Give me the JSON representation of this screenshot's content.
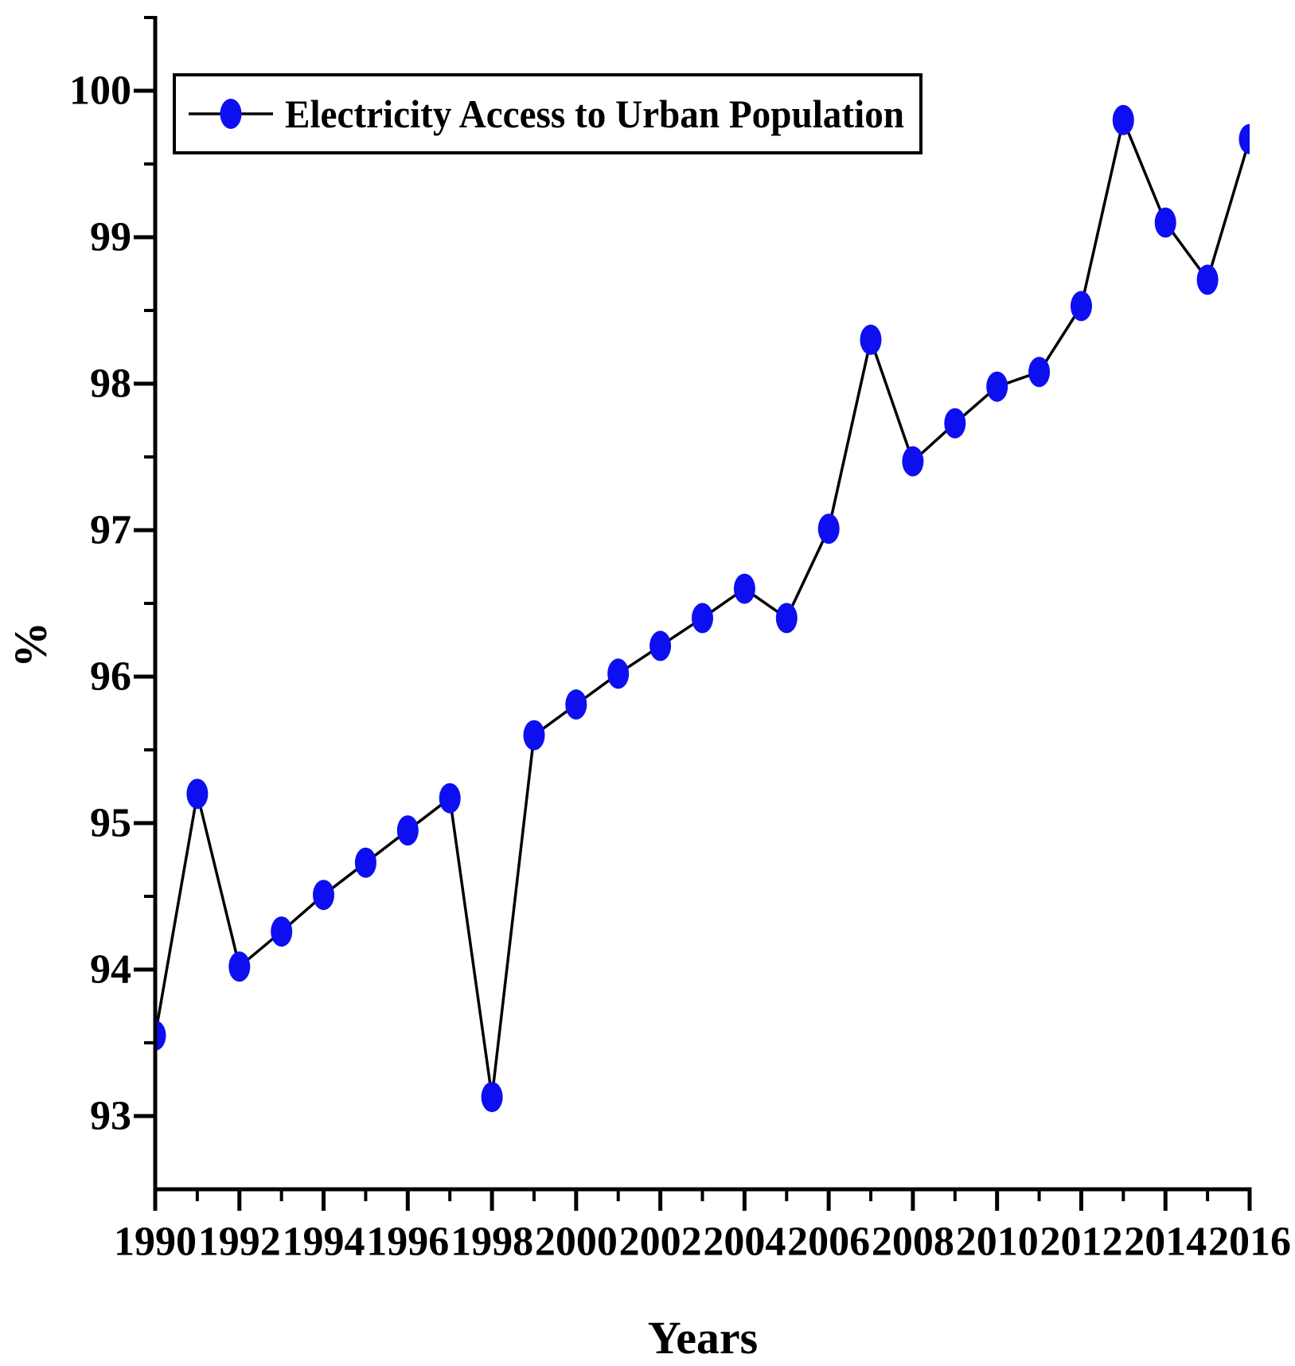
{
  "chart_data": {
    "type": "line",
    "legend": "Electricity Access to Urban Population",
    "xlabel": "Years",
    "ylabel": "%",
    "x": [
      1990,
      1991,
      1992,
      1993,
      1994,
      1995,
      1996,
      1997,
      1998,
      1999,
      2000,
      2001,
      2002,
      2003,
      2004,
      2005,
      2006,
      2007,
      2008,
      2009,
      2010,
      2011,
      2012,
      2013,
      2014,
      2015,
      2016
    ],
    "values": [
      93.55,
      95.2,
      94.02,
      94.26,
      94.51,
      94.73,
      94.95,
      95.17,
      93.13,
      95.6,
      95.81,
      96.02,
      96.21,
      96.4,
      96.6,
      96.4,
      97.01,
      98.3,
      97.47,
      97.73,
      97.98,
      98.08,
      98.53,
      99.8,
      99.1,
      98.71,
      99.67
    ],
    "xlim": [
      1990,
      2016
    ],
    "ylim": [
      92.5,
      100.5
    ],
    "x_ticks_major": [
      1990,
      1992,
      1994,
      1996,
      1998,
      2000,
      2002,
      2004,
      2006,
      2008,
      2010,
      2012,
      2014,
      2016
    ],
    "x_ticks_minor": [
      1991,
      1993,
      1995,
      1997,
      1999,
      2001,
      2003,
      2005,
      2007,
      2009,
      2011,
      2013,
      2015
    ],
    "y_ticks_major": [
      93,
      94,
      95,
      96,
      97,
      98,
      99,
      100
    ],
    "y_ticks_minor": [
      93.5,
      94.5,
      95.5,
      96.5,
      97.5,
      98.5,
      99.5,
      100.5
    ],
    "grid": false,
    "legend_position": "top-left",
    "marker_color": "#0d0ff0",
    "line_color": "#000000",
    "axis_color": "#000000"
  }
}
